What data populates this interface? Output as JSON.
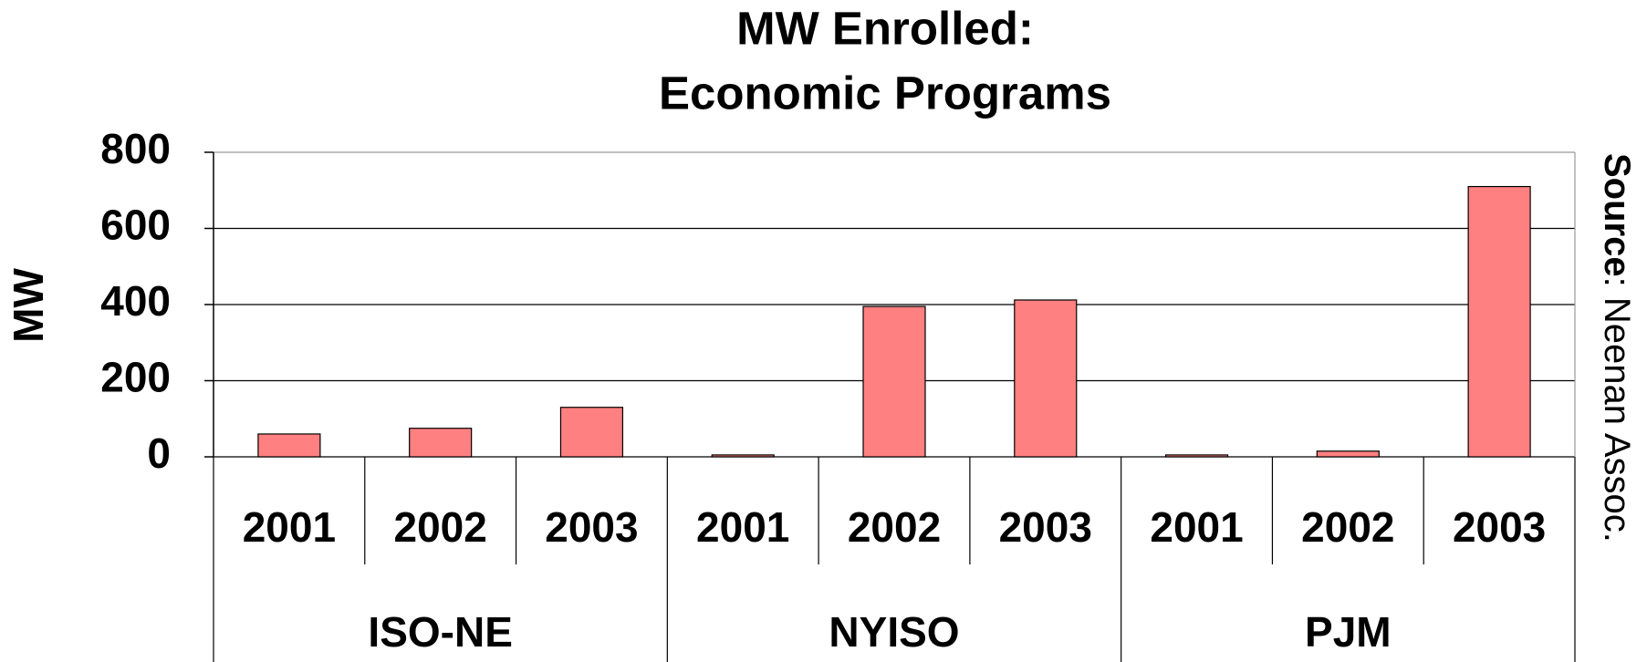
{
  "chart_data": {
    "type": "bar",
    "title": [
      "MW Enrolled:",
      "Economic Programs"
    ],
    "y_label": "MW",
    "source": {
      "label": "Source",
      "text": ": Neenan Assoc."
    },
    "categories": [
      "2001",
      "2002",
      "2003",
      "2001",
      "2002",
      "2003",
      "2001",
      "2002",
      "2003"
    ],
    "groups": [
      "ISO-NE",
      "NYISO",
      "PJM"
    ],
    "values": [
      60,
      75,
      130,
      5,
      395,
      412,
      5,
      15,
      710
    ],
    "color": "#ff8080",
    "ylim": [
      0,
      800
    ],
    "yticks": [
      0,
      200,
      400,
      600,
      800
    ],
    "grid": true
  }
}
